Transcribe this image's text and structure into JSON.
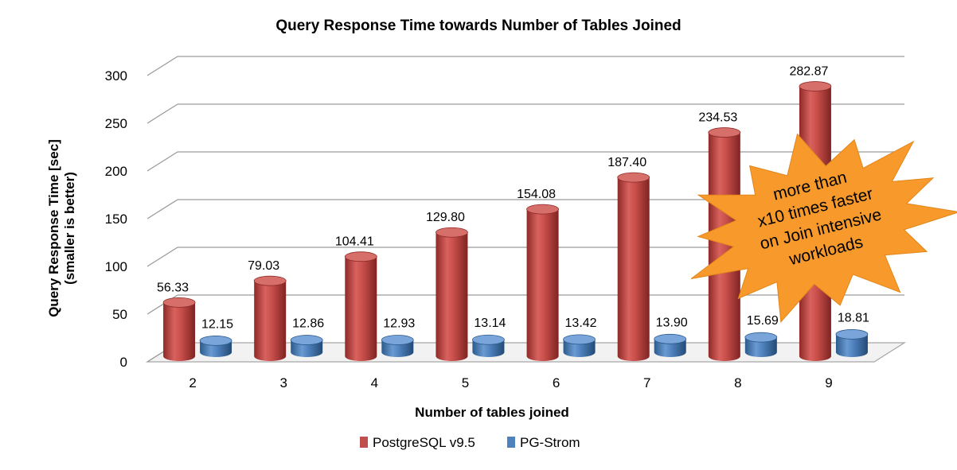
{
  "chart_data": {
    "type": "bar",
    "title": "Query Response Time towards Number of Tables Joined",
    "xlabel": "Number of tables joined",
    "ylabel": [
      "Query Response Time [sec]",
      "(smaller is better)"
    ],
    "categories": [
      "2",
      "3",
      "4",
      "5",
      "6",
      "7",
      "8",
      "9"
    ],
    "ylim": [
      0,
      300
    ],
    "yticks": [
      "0",
      "50",
      "100",
      "150",
      "200",
      "250",
      "300"
    ],
    "grid": true,
    "legend_position": "bottom",
    "series": [
      {
        "name": "PostgreSQL v9.5",
        "color": "#c0504d",
        "values": [
          56.33,
          79.03,
          104.41,
          129.8,
          154.08,
          187.4,
          234.53,
          282.87
        ],
        "labels": [
          "56.33",
          "79.03",
          "104.41",
          "129.80",
          "154.08",
          "187.40",
          "234.53",
          "282.87"
        ]
      },
      {
        "name": "PG-Strom",
        "color": "#4f81bd",
        "values": [
          12.15,
          12.86,
          12.93,
          13.14,
          13.42,
          13.9,
          15.69,
          18.81
        ],
        "labels": [
          "12.15",
          "12.86",
          "12.93",
          "13.14",
          "13.42",
          "13.90",
          "15.69",
          "18.81"
        ]
      }
    ],
    "annotation": {
      "lines": [
        "more than",
        "x10 times faster",
        "on Join intensive",
        "workloads"
      ],
      "color": "#f79a2b"
    }
  }
}
